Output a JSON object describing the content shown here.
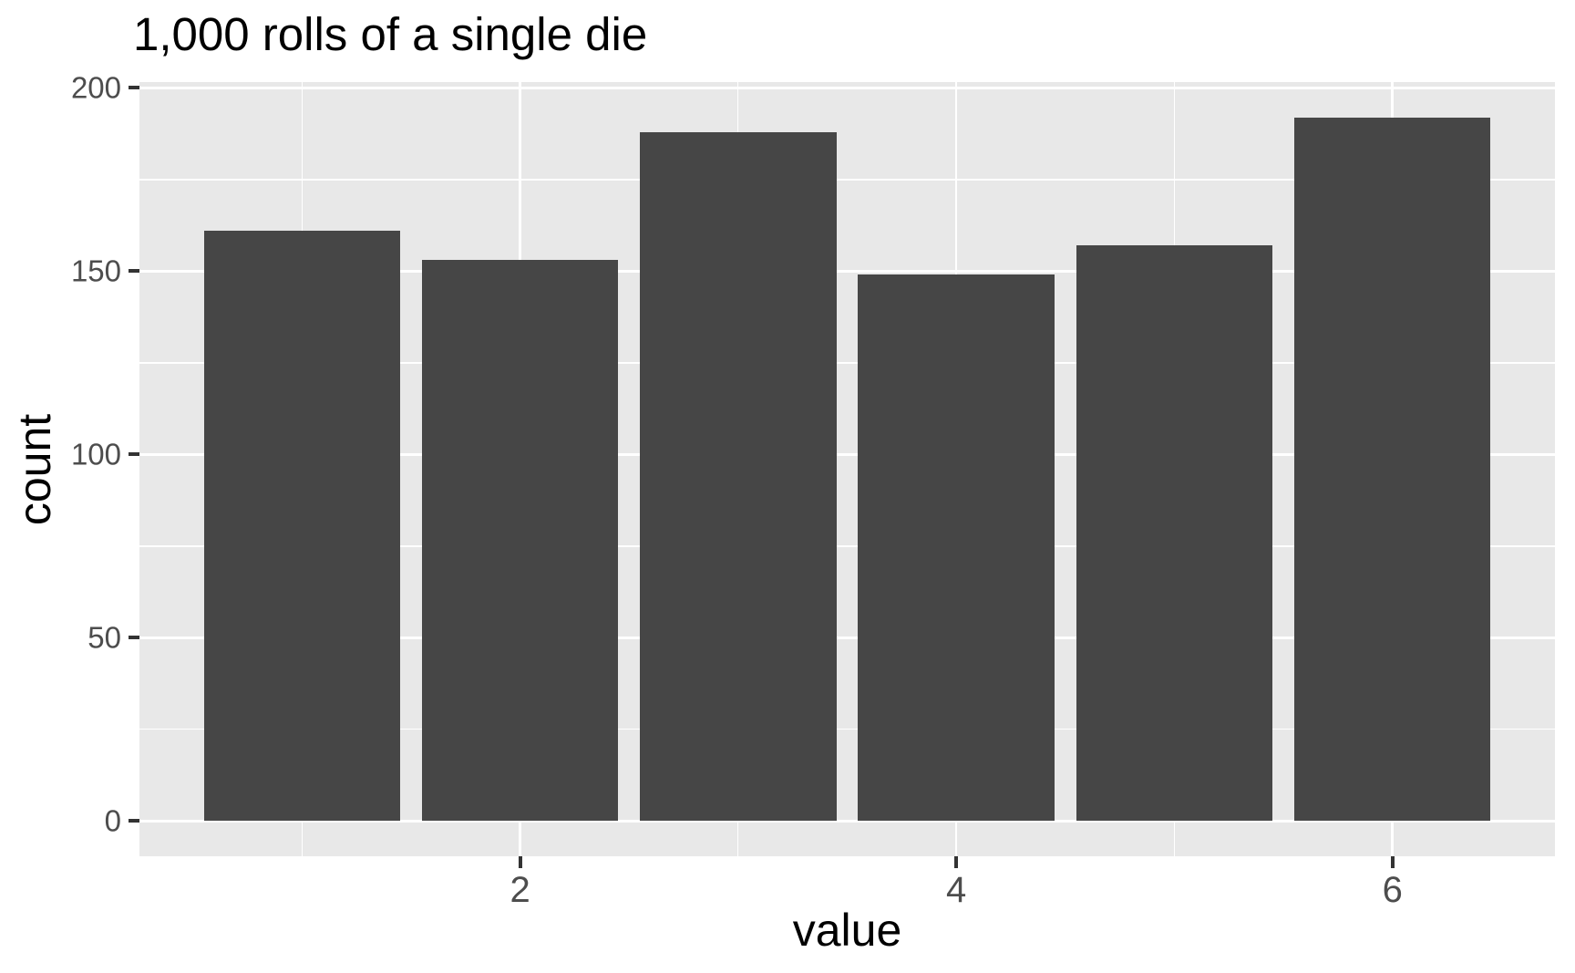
{
  "chart_data": {
    "type": "bar",
    "title": "1,000 rolls of a single die",
    "xlabel": "value",
    "ylabel": "count",
    "x": [
      1,
      2,
      3,
      4,
      5,
      6
    ],
    "values": [
      161,
      153,
      188,
      149,
      157,
      192
    ],
    "bar_width": 0.9,
    "xticks": [
      2,
      4,
      6
    ],
    "yticks": [
      0,
      50,
      100,
      150,
      200
    ],
    "x_minor_gridlines": [
      1,
      3,
      5
    ],
    "y_minor_gridlines": [
      25,
      75,
      125,
      175
    ],
    "xlim": [
      0.255,
      6.745
    ],
    "ylim": [
      -9.6,
      201.6
    ],
    "grid": "white major and minor gridlines on grey panel",
    "legend": false,
    "colors": {
      "figure_background": "#FFFFFF",
      "panel_background": "#E8E8E8",
      "gridline": "#FFFFFF",
      "bar_fill": "#464646",
      "tick_mark": "#333333",
      "tick_label": "#4D4D4D",
      "title_text": "#000000"
    }
  }
}
